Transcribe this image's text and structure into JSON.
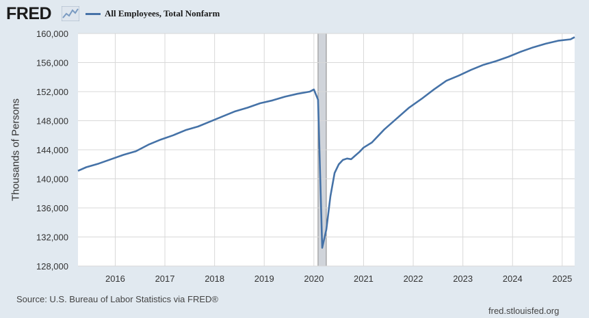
{
  "header": {
    "logo_text": "FRED",
    "logo_icon": "fred-chart-icon",
    "series_label": "All Employees, Total Nonfarm"
  },
  "colors": {
    "series": "#4572a7",
    "background": "#e1e9f0",
    "plot_background": "#ffffff",
    "recession": "#d0d4da"
  },
  "footer": {
    "source": "Source: U.S. Bureau of Labor Statistics via FRED®",
    "url": "fred.stlouisfed.org"
  },
  "chart_data": {
    "type": "line",
    "title": "",
    "xlabel": "",
    "ylabel": "Thousands of Persons",
    "ylim": [
      128000,
      160000
    ],
    "xlim": [
      "2015-04",
      "2025-04"
    ],
    "yticks": [
      "128,000",
      "132,000",
      "136,000",
      "140,000",
      "144,000",
      "148,000",
      "152,000",
      "156,000",
      "160,000"
    ],
    "xticks": [
      "2016",
      "2017",
      "2018",
      "2019",
      "2020",
      "2021",
      "2022",
      "2023",
      "2024",
      "2025"
    ],
    "grid": true,
    "legend": "top-left",
    "recession_shading": [
      [
        "2020-02",
        "2020-04"
      ]
    ],
    "series": [
      {
        "name": "All Employees, Total Nonfarm",
        "x": [
          "2015-04",
          "2015-06",
          "2015-09",
          "2015-12",
          "2016-03",
          "2016-06",
          "2016-09",
          "2016-12",
          "2017-03",
          "2017-06",
          "2017-09",
          "2017-12",
          "2018-03",
          "2018-06",
          "2018-09",
          "2018-12",
          "2019-03",
          "2019-06",
          "2019-09",
          "2019-12",
          "2020-01",
          "2020-02",
          "2020-03",
          "2020-04",
          "2020-05",
          "2020-06",
          "2020-07",
          "2020-08",
          "2020-09",
          "2020-10",
          "2020-11",
          "2020-12",
          "2021-01",
          "2021-03",
          "2021-06",
          "2021-09",
          "2021-12",
          "2022-03",
          "2022-06",
          "2022-09",
          "2022-12",
          "2023-03",
          "2023-06",
          "2023-09",
          "2023-12",
          "2024-03",
          "2024-06",
          "2024-09",
          "2024-12",
          "2025-03",
          "2025-04"
        ],
        "values": [
          141100,
          141600,
          142100,
          142700,
          143300,
          143800,
          144700,
          145400,
          146000,
          146700,
          147200,
          147900,
          148600,
          149300,
          149800,
          150400,
          150800,
          151300,
          151700,
          152000,
          152300,
          150900,
          130500,
          133000,
          137600,
          140800,
          142000,
          142600,
          142800,
          142700,
          143200,
          143700,
          144300,
          145000,
          146800,
          148300,
          149800,
          151000,
          152300,
          153500,
          154200,
          155000,
          155700,
          156200,
          156800,
          157500,
          158100,
          158600,
          159000,
          159200,
          159500
        ]
      }
    ]
  }
}
